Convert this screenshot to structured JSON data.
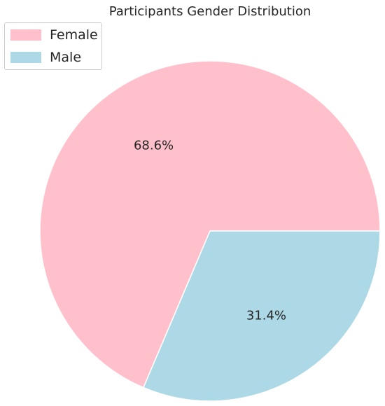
{
  "chart_data": {
    "type": "pie",
    "title": "Participants Gender Distribution",
    "categories": [
      "Female",
      "Male"
    ],
    "values": [
      68.6,
      31.4
    ],
    "labels": [
      "68.6%",
      "31.4%"
    ],
    "colors": [
      "#ffc0cb",
      "#add8e6"
    ],
    "legend": {
      "placement": "top-left",
      "entries": [
        "Female",
        "Male"
      ]
    }
  }
}
